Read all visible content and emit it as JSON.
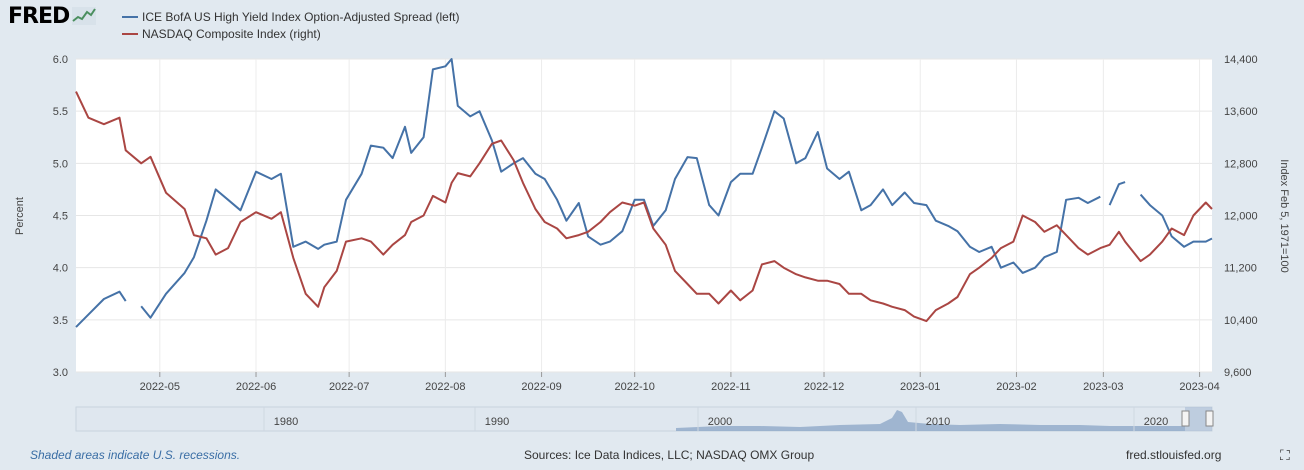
{
  "logo": {
    "text": "FRED",
    "icon": "chart-line-icon"
  },
  "legend": [
    {
      "label": "ICE BofA US High Yield Index Option-Adjusted Spread (left)",
      "color": "#4572a7"
    },
    {
      "label": "NASDAQ Composite Index (right)",
      "color": "#aa4643"
    }
  ],
  "chart_data": {
    "type": "line",
    "x_start": "2022-04-04",
    "x_end": "2023-04-05",
    "x_ticks": [
      "2022-05",
      "2022-06",
      "2022-07",
      "2022-08",
      "2022-09",
      "2022-10",
      "2022-11",
      "2022-12",
      "2023-01",
      "2023-02",
      "2023-03",
      "2023-04"
    ],
    "left_axis": {
      "title": "Percent",
      "ylim": [
        3.0,
        6.0
      ],
      "ticks": [
        "3.0",
        "3.5",
        "4.0",
        "4.5",
        "5.0",
        "5.5",
        "6.0"
      ]
    },
    "right_axis": {
      "title": "Index Feb 5, 1971=100",
      "ylim": [
        9600,
        14400
      ],
      "ticks": [
        "9,600",
        "10,400",
        "11,200",
        "12,000",
        "12,800",
        "13,600",
        "14,400"
      ]
    },
    "series": [
      {
        "name": "ICE BofA US High Yield Index Option-Adjusted Spread",
        "axis": "left",
        "color": "#4572a7",
        "points": [
          [
            "2022-04-04",
            3.43
          ],
          [
            "2022-04-08",
            3.55
          ],
          [
            "2022-04-13",
            3.7
          ],
          [
            "2022-04-18",
            3.77
          ],
          [
            "2022-04-20",
            3.68
          ],
          null,
          [
            "2022-04-25",
            3.63
          ],
          [
            "2022-04-28",
            3.52
          ],
          [
            "2022-05-03",
            3.75
          ],
          [
            "2022-05-09",
            3.95
          ],
          [
            "2022-05-12",
            4.1
          ],
          [
            "2022-05-16",
            4.45
          ],
          [
            "2022-05-19",
            4.75
          ],
          [
            "2022-05-23",
            4.65
          ],
          [
            "2022-05-27",
            4.55
          ],
          [
            "2022-06-01",
            4.92
          ],
          [
            "2022-06-06",
            4.85
          ],
          [
            "2022-06-09",
            4.9
          ],
          [
            "2022-06-13",
            4.2
          ],
          [
            "2022-06-17",
            4.25
          ],
          [
            "2022-06-21",
            4.18
          ],
          [
            "2022-06-23",
            4.22
          ],
          [
            "2022-06-27",
            4.25
          ],
          [
            "2022-06-30",
            4.65
          ],
          [
            "2022-07-05",
            4.9
          ],
          [
            "2022-07-08",
            5.17
          ],
          [
            "2022-07-12",
            5.15
          ],
          [
            "2022-07-15",
            5.05
          ],
          [
            "2022-07-19",
            5.35
          ],
          [
            "2022-07-21",
            5.1
          ],
          [
            "2022-07-25",
            5.25
          ],
          [
            "2022-07-28",
            5.9
          ],
          [
            "2022-08-01",
            5.93
          ],
          [
            "2022-08-03",
            6.0
          ],
          [
            "2022-08-05",
            5.55
          ],
          [
            "2022-08-09",
            5.45
          ],
          [
            "2022-08-12",
            5.5
          ],
          [
            "2022-08-16",
            5.22
          ],
          [
            "2022-08-19",
            4.92
          ],
          [
            "2022-08-23",
            5.0
          ],
          [
            "2022-08-26",
            5.05
          ],
          [
            "2022-08-30",
            4.9
          ],
          [
            "2022-09-02",
            4.85
          ],
          [
            "2022-09-06",
            4.65
          ],
          [
            "2022-09-09",
            4.45
          ],
          [
            "2022-09-13",
            4.62
          ],
          [
            "2022-09-16",
            4.3
          ],
          [
            "2022-09-20",
            4.22
          ],
          [
            "2022-09-23",
            4.25
          ],
          [
            "2022-09-27",
            4.35
          ],
          [
            "2022-10-01",
            4.65
          ],
          [
            "2022-10-04",
            4.65
          ],
          [
            "2022-10-07",
            4.4
          ],
          [
            "2022-10-11",
            4.55
          ],
          [
            "2022-10-14",
            4.85
          ],
          [
            "2022-10-18",
            5.06
          ],
          [
            "2022-10-21",
            5.05
          ],
          [
            "2022-10-25",
            4.6
          ],
          [
            "2022-10-28",
            4.5
          ],
          [
            "2022-11-01",
            4.82
          ],
          [
            "2022-11-04",
            4.9
          ],
          [
            "2022-11-08",
            4.9
          ],
          [
            "2022-11-11",
            5.15
          ],
          [
            "2022-11-15",
            5.5
          ],
          [
            "2022-11-18",
            5.43
          ],
          [
            "2022-11-22",
            5.0
          ],
          [
            "2022-11-25",
            5.05
          ],
          [
            "2022-11-29",
            5.3
          ],
          [
            "2022-12-02",
            4.95
          ],
          [
            "2022-12-06",
            4.85
          ],
          [
            "2022-12-09",
            4.92
          ],
          [
            "2022-12-13",
            4.55
          ],
          [
            "2022-12-16",
            4.6
          ],
          [
            "2022-12-20",
            4.75
          ],
          [
            "2022-12-23",
            4.6
          ],
          [
            "2022-12-27",
            4.72
          ],
          [
            "2022-12-30",
            4.62
          ],
          [
            "2023-01-03",
            4.6
          ],
          [
            "2023-01-06",
            4.45
          ],
          [
            "2023-01-10",
            4.4
          ],
          [
            "2023-01-13",
            4.35
          ],
          [
            "2023-01-17",
            4.2
          ],
          [
            "2023-01-20",
            4.15
          ],
          [
            "2023-01-24",
            4.2
          ],
          [
            "2023-01-27",
            4.0
          ],
          [
            "2023-01-31",
            4.05
          ],
          [
            "2023-02-03",
            3.95
          ],
          [
            "2023-02-07",
            4.0
          ],
          [
            "2023-02-10",
            4.1
          ],
          [
            "2023-02-14",
            4.15
          ],
          [
            "2023-02-17",
            4.65
          ],
          [
            "2023-02-21",
            4.67
          ],
          [
            "2023-02-24",
            4.62
          ],
          [
            "2023-02-28",
            4.68
          ],
          null,
          [
            "2023-03-03",
            4.6
          ],
          [
            "2023-03-06",
            4.8
          ],
          [
            "2023-03-08",
            4.82
          ],
          null,
          [
            "2023-03-13",
            4.7
          ],
          [
            "2023-03-16",
            4.6
          ],
          [
            "2023-03-20",
            4.5
          ],
          [
            "2023-03-23",
            4.3
          ],
          [
            "2023-03-27",
            4.2
          ],
          [
            "2023-03-30",
            4.25
          ],
          [
            "2023-04-03",
            4.25
          ],
          [
            "2023-04-05",
            4.28
          ]
        ]
      },
      {
        "name": "NASDAQ Composite Index",
        "axis": "right",
        "color": "#aa4643",
        "points": [
          [
            "2022-04-04",
            13900
          ],
          [
            "2022-04-08",
            13500
          ],
          [
            "2022-04-13",
            13400
          ],
          [
            "2022-04-18",
            13500
          ],
          [
            "2022-04-20",
            13000
          ],
          [
            "2022-04-25",
            12800
          ],
          [
            "2022-04-28",
            12900
          ],
          [
            "2022-05-03",
            12350
          ],
          [
            "2022-05-09",
            12100
          ],
          [
            "2022-05-12",
            11700
          ],
          [
            "2022-05-16",
            11650
          ],
          [
            "2022-05-19",
            11400
          ],
          [
            "2022-05-23",
            11500
          ],
          [
            "2022-05-27",
            11900
          ],
          [
            "2022-06-01",
            12050
          ],
          [
            "2022-06-06",
            11950
          ],
          [
            "2022-06-09",
            12050
          ],
          [
            "2022-06-13",
            11350
          ],
          [
            "2022-06-17",
            10800
          ],
          [
            "2022-06-21",
            10600
          ],
          [
            "2022-06-23",
            10900
          ],
          [
            "2022-06-27",
            11150
          ],
          [
            "2022-06-30",
            11600
          ],
          [
            "2022-07-05",
            11650
          ],
          [
            "2022-07-08",
            11600
          ],
          [
            "2022-07-12",
            11400
          ],
          [
            "2022-07-15",
            11550
          ],
          [
            "2022-07-19",
            11700
          ],
          [
            "2022-07-21",
            11900
          ],
          [
            "2022-07-25",
            12000
          ],
          [
            "2022-07-28",
            12300
          ],
          [
            "2022-08-01",
            12200
          ],
          [
            "2022-08-03",
            12500
          ],
          [
            "2022-08-05",
            12650
          ],
          [
            "2022-08-09",
            12600
          ],
          [
            "2022-08-12",
            12800
          ],
          [
            "2022-08-16",
            13100
          ],
          [
            "2022-08-19",
            13150
          ],
          [
            "2022-08-23",
            12850
          ],
          [
            "2022-08-26",
            12500
          ],
          [
            "2022-08-30",
            12100
          ],
          [
            "2022-09-02",
            11900
          ],
          [
            "2022-09-06",
            11800
          ],
          [
            "2022-09-09",
            11650
          ],
          [
            "2022-09-13",
            11700
          ],
          [
            "2022-09-16",
            11750
          ],
          [
            "2022-09-20",
            11900
          ],
          [
            "2022-09-23",
            12050
          ],
          [
            "2022-09-27",
            12200
          ],
          [
            "2022-10-01",
            12150
          ],
          [
            "2022-10-04",
            12200
          ],
          [
            "2022-10-07",
            11800
          ],
          [
            "2022-10-11",
            11550
          ],
          [
            "2022-10-14",
            11150
          ],
          [
            "2022-10-18",
            10950
          ],
          [
            "2022-10-21",
            10800
          ],
          [
            "2022-10-25",
            10800
          ],
          [
            "2022-10-28",
            10650
          ],
          [
            "2022-11-01",
            10850
          ],
          [
            "2022-11-04",
            10700
          ],
          [
            "2022-11-08",
            10850
          ],
          [
            "2022-11-11",
            11250
          ],
          [
            "2022-11-15",
            11300
          ],
          [
            "2022-11-18",
            11200
          ],
          [
            "2022-11-22",
            11100
          ],
          [
            "2022-11-25",
            11050
          ],
          [
            "2022-11-29",
            11000
          ],
          [
            "2022-12-02",
            11000
          ],
          [
            "2022-12-06",
            10950
          ],
          [
            "2022-12-09",
            10800
          ],
          [
            "2022-12-13",
            10800
          ],
          [
            "2022-12-16",
            10700
          ],
          [
            "2022-12-20",
            10650
          ],
          [
            "2022-12-23",
            10600
          ],
          [
            "2022-12-27",
            10550
          ],
          [
            "2022-12-30",
            10450
          ],
          [
            "2023-01-03",
            10380
          ],
          [
            "2023-01-06",
            10550
          ],
          [
            "2023-01-10",
            10650
          ],
          [
            "2023-01-13",
            10750
          ],
          [
            "2023-01-17",
            11100
          ],
          [
            "2023-01-20",
            11200
          ],
          [
            "2023-01-24",
            11350
          ],
          [
            "2023-01-27",
            11500
          ],
          [
            "2023-01-31",
            11600
          ],
          [
            "2023-02-03",
            12000
          ],
          [
            "2023-02-07",
            11900
          ],
          [
            "2023-02-10",
            11750
          ],
          [
            "2023-02-14",
            11850
          ],
          [
            "2023-02-17",
            11700
          ],
          [
            "2023-02-21",
            11500
          ],
          [
            "2023-02-24",
            11400
          ],
          [
            "2023-02-28",
            11500
          ],
          [
            "2023-03-03",
            11550
          ],
          [
            "2023-03-06",
            11750
          ],
          [
            "2023-03-08",
            11600
          ],
          [
            "2023-03-13",
            11300
          ],
          [
            "2023-03-16",
            11400
          ],
          [
            "2023-03-20",
            11600
          ],
          [
            "2023-03-23",
            11800
          ],
          [
            "2023-03-27",
            11700
          ],
          [
            "2023-03-30",
            12000
          ],
          [
            "2023-04-03",
            12200
          ],
          [
            "2023-04-05",
            12100
          ]
        ]
      }
    ],
    "navigator": {
      "ticks": [
        "1980",
        "1990",
        "2000",
        "2010",
        "2020"
      ]
    },
    "recession_shading_note": "Shaded areas indicate U.S. recessions."
  },
  "footer": {
    "recession_note": "Shaded areas indicate U.S. recessions.",
    "sources": "Sources: Ice Data Indices, LLC; NASDAQ OMX Group",
    "site": "fred.stlouisfed.org",
    "fullscreen_icon": "fullscreen-icon"
  }
}
